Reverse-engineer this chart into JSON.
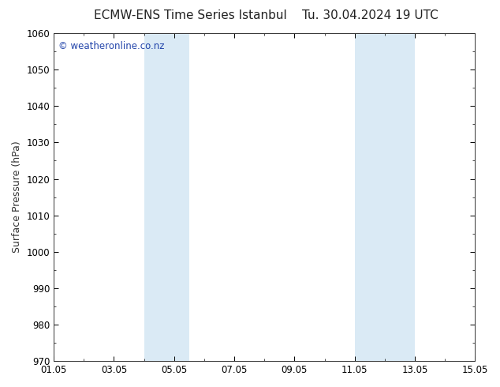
{
  "title_left": "ECMW-ENS Time Series Istanbul",
  "title_right": "Tu. 30.04.2024 19 UTC",
  "ylabel": "Surface Pressure (hPa)",
  "ylim": [
    970,
    1060
  ],
  "yticks": [
    970,
    980,
    990,
    1000,
    1010,
    1020,
    1030,
    1040,
    1050,
    1060
  ],
  "xlim": [
    0,
    14
  ],
  "xtick_positions": [
    0,
    2,
    4,
    6,
    8,
    10,
    12,
    14
  ],
  "xtick_labels": [
    "01.05",
    "03.05",
    "05.05",
    "07.05",
    "09.05",
    "11.05",
    "13.05",
    "15.05"
  ],
  "shaded_bands": [
    {
      "xmin": 3.0,
      "xmax": 4.5
    },
    {
      "xmin": 10.0,
      "xmax": 12.0
    }
  ],
  "band_color": "#daeaf5",
  "background_color": "#ffffff",
  "plot_bg_color": "#ffffff",
  "watermark": "© weatheronline.co.nz",
  "watermark_color": "#2244aa",
  "title_color": "#222222",
  "title_fontsize": 11,
  "ylabel_fontsize": 9,
  "tick_fontsize": 8.5,
  "watermark_fontsize": 8.5
}
